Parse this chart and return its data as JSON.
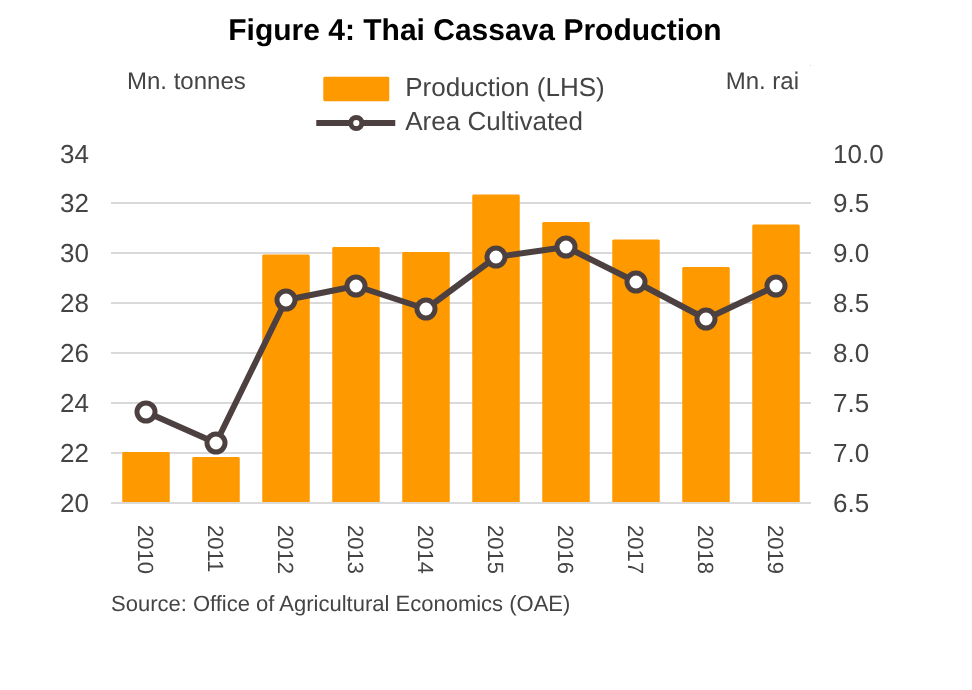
{
  "chart_data": {
    "type": "bar",
    "title": "Figure 4: Thai Cassava Production",
    "ylabel": "Mn. tonnes",
    "y2label": "Mn. rai",
    "categories": [
      "2010",
      "2011",
      "2012",
      "2013",
      "2014",
      "2015",
      "2016",
      "2017",
      "2018",
      "2019"
    ],
    "series": [
      {
        "name": "Production (LHS)",
        "color": "#ff9900",
        "values": [
          22.0,
          21.8,
          29.9,
          30.2,
          30.0,
          32.3,
          31.2,
          30.5,
          29.4,
          31.1
        ]
      },
      {
        "name": "Area Cultivated",
        "type": "line",
        "axis": "y2",
        "color": "#4d4040",
        "marker": "circle",
        "line_style": "solid",
        "values": [
          7.41,
          7.1,
          8.53,
          8.67,
          8.44,
          8.96,
          9.06,
          8.71,
          8.34,
          8.67
        ]
      }
    ],
    "ylim": [
      20,
      34
    ],
    "yticks": [
      20,
      22,
      24,
      26,
      28,
      30,
      32,
      34
    ],
    "y2lim": [
      6.5,
      10.0
    ],
    "y2ticks": [
      {
        "value": 6.5,
        "label": "6.5"
      },
      {
        "value": 7.0,
        "label": "7.0"
      },
      {
        "value": 7.5,
        "label": "7.5"
      },
      {
        "value": 8.0,
        "label": "8.0"
      },
      {
        "value": 8.5,
        "label": "8.5"
      },
      {
        "value": 9.0,
        "label": "9.0"
      },
      {
        "value": 9.5,
        "label": "9.5"
      },
      {
        "value": 10.0,
        "label": "10.0"
      }
    ],
    "grid": "y",
    "legend": "top",
    "annotations": [
      "Source: Office of Agricultural Economics (OAE)"
    ]
  }
}
